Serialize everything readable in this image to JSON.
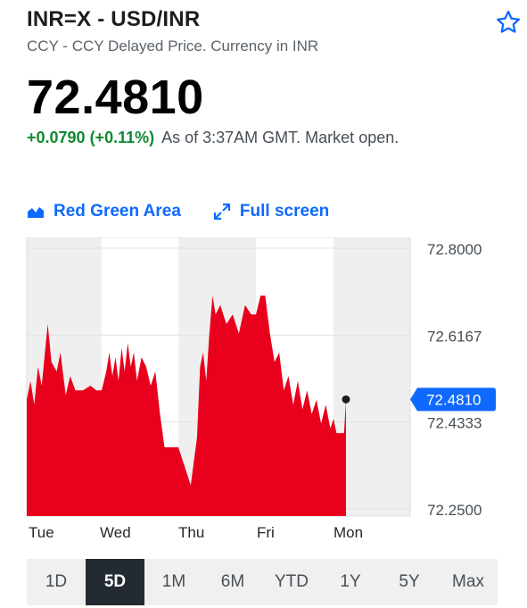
{
  "quote": {
    "symbol_title": "INR=X - USD/INR",
    "subtitle": "CCY - CCY Delayed Price. Currency in INR",
    "price": "72.4810",
    "change": "+0.0790 (+0.11%)",
    "as_of": "As of 3:37AM GMT. Market open."
  },
  "toolbar": {
    "chart_type_label": "Red Green Area",
    "fullscreen_label": "Full screen"
  },
  "colors": {
    "positive": "#0f8a32",
    "accent": "#0f69ff",
    "area_fill": "#e8001c",
    "band_shade": "#efefef"
  },
  "icons": {
    "watchlist": "star-outline-icon",
    "chart_type": "area-chart-icon",
    "fullscreen": "expand-arrows-icon"
  },
  "ranges": [
    "1D",
    "5D",
    "1M",
    "6M",
    "YTD",
    "1Y",
    "5Y",
    "Max"
  ],
  "active_range": "5D",
  "chart_data": {
    "type": "area",
    "x_labels": [
      "Tue",
      "Wed",
      "Thu",
      "Fri",
      "Mon"
    ],
    "y_ticks": [
      "72.8000",
      "72.6167",
      "72.4333",
      "72.2500"
    ],
    "ylim": [
      72.25,
      72.8
    ],
    "current_label": "72.4810",
    "current_value": 72.481,
    "day_points": [
      [
        [
          0.0,
          72.48
        ],
        [
          0.05,
          72.52
        ],
        [
          0.1,
          72.47
        ],
        [
          0.15,
          72.55
        ],
        [
          0.2,
          72.51
        ],
        [
          0.28,
          72.64
        ],
        [
          0.33,
          72.56
        ],
        [
          0.4,
          72.54
        ],
        [
          0.45,
          72.58
        ],
        [
          0.52,
          72.49
        ],
        [
          0.58,
          72.53
        ],
        [
          0.65,
          72.5
        ],
        [
          0.75,
          72.5
        ],
        [
          0.85,
          72.51
        ],
        [
          0.93,
          72.5
        ],
        [
          1.0,
          72.5
        ]
      ],
      [
        [
          0.0,
          72.5
        ],
        [
          0.06,
          72.54
        ],
        [
          0.1,
          72.58
        ],
        [
          0.14,
          72.53
        ],
        [
          0.18,
          72.57
        ],
        [
          0.22,
          72.52
        ],
        [
          0.26,
          72.59
        ],
        [
          0.3,
          72.54
        ],
        [
          0.34,
          72.6
        ],
        [
          0.38,
          72.55
        ],
        [
          0.42,
          72.58
        ],
        [
          0.46,
          72.52
        ],
        [
          0.52,
          72.57
        ],
        [
          0.58,
          72.55
        ],
        [
          0.64,
          72.51
        ],
        [
          0.7,
          72.54
        ],
        [
          0.76,
          72.45
        ],
        [
          0.82,
          72.38
        ],
        [
          1.0,
          72.38
        ]
      ],
      [
        [
          0.0,
          72.38
        ],
        [
          0.06,
          72.35
        ],
        [
          0.12,
          72.32
        ],
        [
          0.16,
          72.3
        ],
        [
          0.2,
          72.35
        ],
        [
          0.24,
          72.4
        ],
        [
          0.28,
          72.55
        ],
        [
          0.32,
          72.58
        ],
        [
          0.36,
          72.52
        ],
        [
          0.4,
          72.62
        ],
        [
          0.44,
          72.7
        ],
        [
          0.48,
          72.66
        ],
        [
          0.54,
          72.68
        ],
        [
          0.62,
          72.64
        ],
        [
          0.7,
          72.66
        ],
        [
          0.78,
          72.62
        ],
        [
          0.86,
          72.68
        ],
        [
          0.94,
          72.66
        ],
        [
          1.0,
          72.66
        ]
      ],
      [
        [
          0.0,
          72.66
        ],
        [
          0.06,
          72.7
        ],
        [
          0.12,
          72.7
        ],
        [
          0.18,
          72.62
        ],
        [
          0.24,
          72.56
        ],
        [
          0.3,
          72.58
        ],
        [
          0.36,
          72.5
        ],
        [
          0.42,
          72.53
        ],
        [
          0.48,
          72.47
        ],
        [
          0.54,
          72.52
        ],
        [
          0.6,
          72.46
        ],
        [
          0.66,
          72.5
        ],
        [
          0.72,
          72.45
        ],
        [
          0.78,
          72.48
        ],
        [
          0.84,
          72.43
        ],
        [
          0.9,
          72.47
        ],
        [
          0.96,
          72.42
        ],
        [
          1.0,
          72.44
        ]
      ],
      [
        [
          0.0,
          72.44
        ],
        [
          0.12,
          72.41
        ],
        [
          0.22,
          72.41
        ],
        [
          0.32,
          72.41
        ],
        [
          0.42,
          72.41
        ],
        [
          0.48,
          72.46
        ],
        [
          0.5,
          72.48
        ]
      ]
    ]
  }
}
